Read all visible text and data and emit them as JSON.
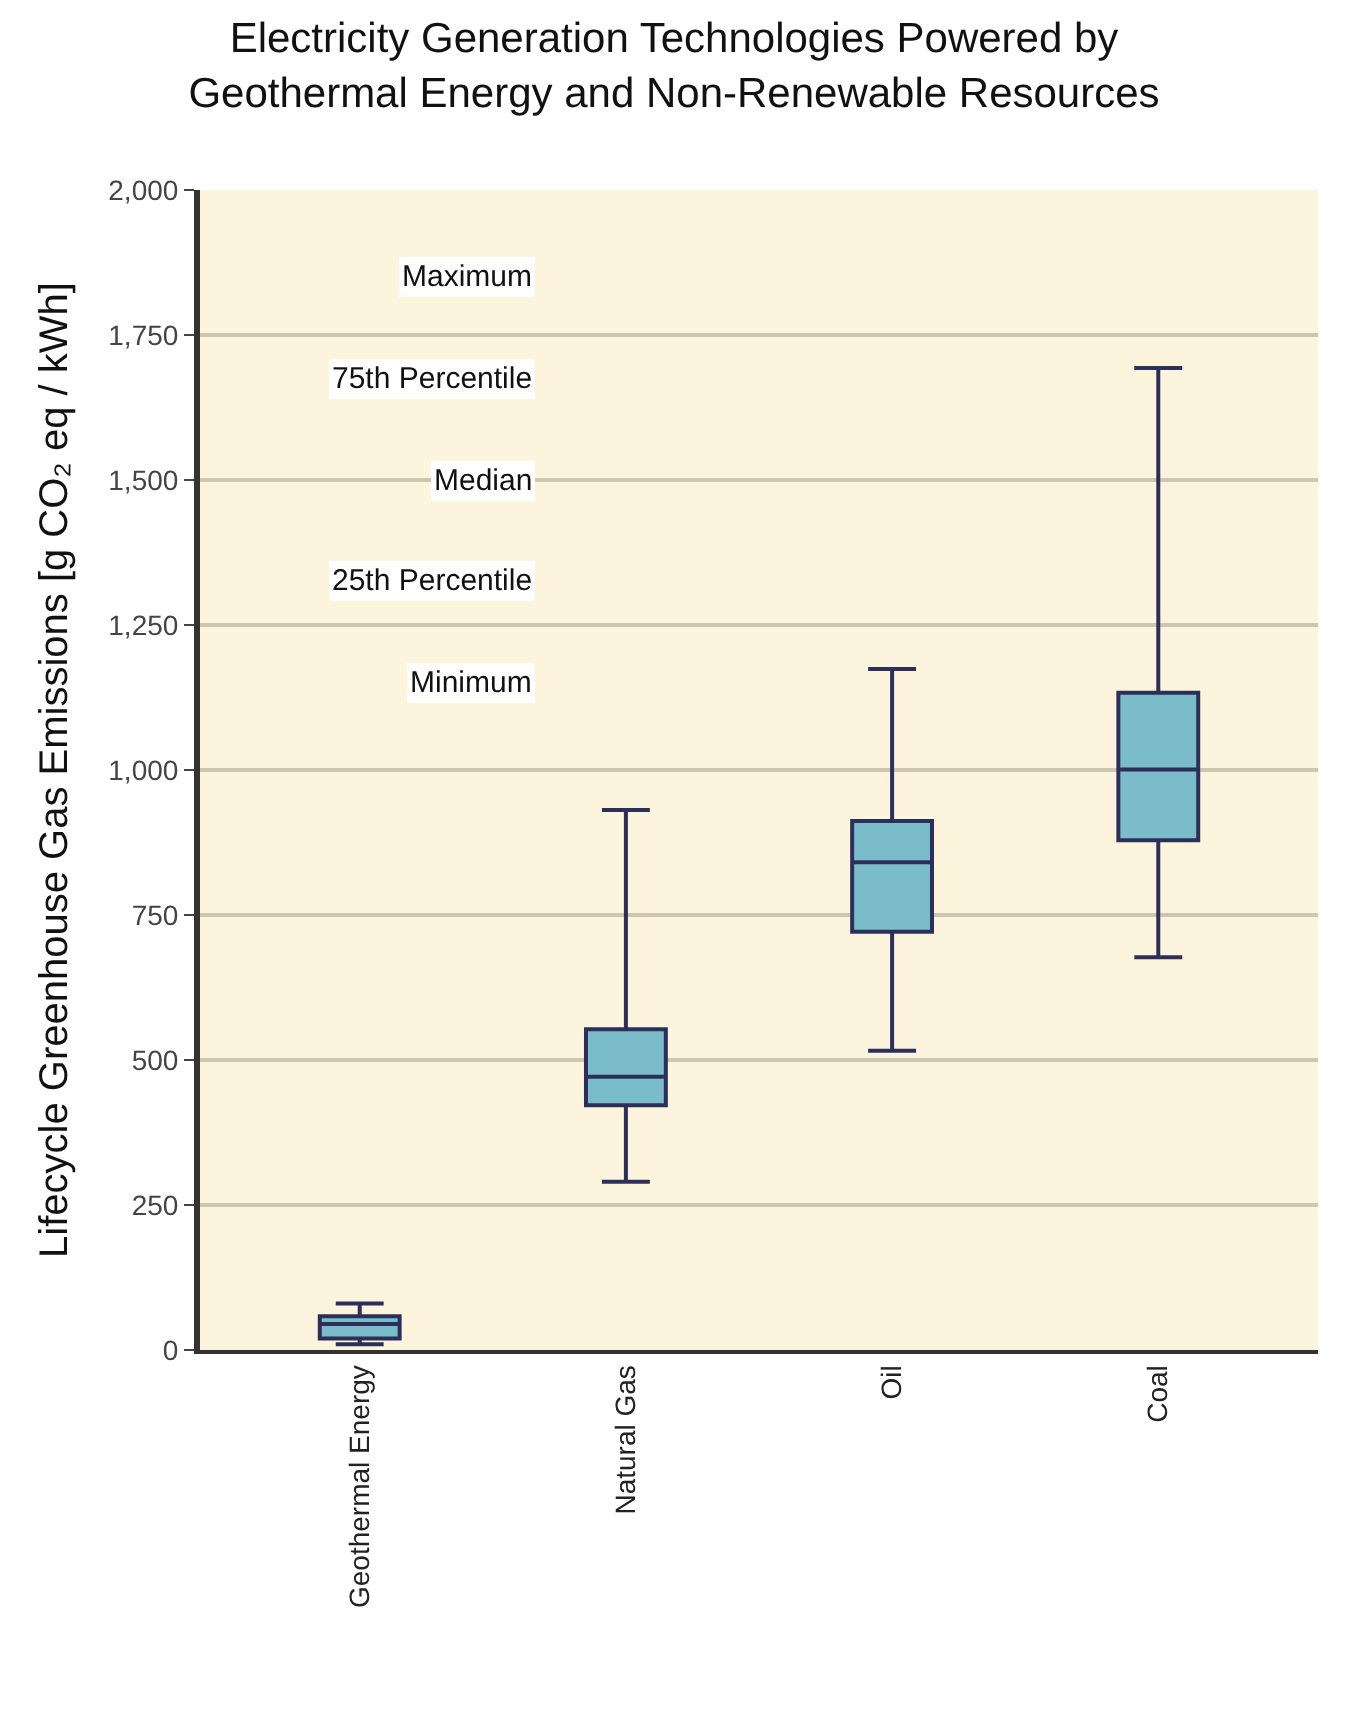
{
  "chart_data": {
    "type": "box",
    "title": "Electricity Generation Technologies Powered by\nGeothermal Energy and Non-Renewable Resources",
    "ylabel": "Lifecycle Greenhouse Gas Emissions [g CO₂ eq / kWh]",
    "categories": [
      "Geothermal Energy",
      "Natural Gas",
      "Oil",
      "Coal"
    ],
    "boxes": [
      {
        "low": 10,
        "q1": 20,
        "median": 45,
        "q3": 58,
        "high": 80
      },
      {
        "low": 290,
        "q1": 422,
        "median": 471,
        "q3": 553,
        "high": 931
      },
      {
        "low": 516,
        "q1": 721,
        "median": 841,
        "q3": 912,
        "high": 1174
      },
      {
        "low": 677,
        "q1": 879,
        "median": 1001,
        "q3": 1133,
        "high": 1693
      }
    ],
    "color": "#7bbccb",
    "ylim": [
      0,
      2000
    ],
    "yticks": [
      0,
      250,
      500,
      750,
      {
        "value": 1000,
        "label": "1,000"
      },
      {
        "value": 1250,
        "label": "1,250"
      },
      {
        "value": 1500,
        "label": "1,500"
      },
      {
        "value": 1750,
        "label": "1,750"
      },
      {
        "value": 2000,
        "label": "2,000"
      }
    ],
    "grid": "y",
    "annotations": [
      "Maximum",
      "75th Percentile",
      "Median",
      "25th Percentile",
      "Minimum"
    ]
  }
}
